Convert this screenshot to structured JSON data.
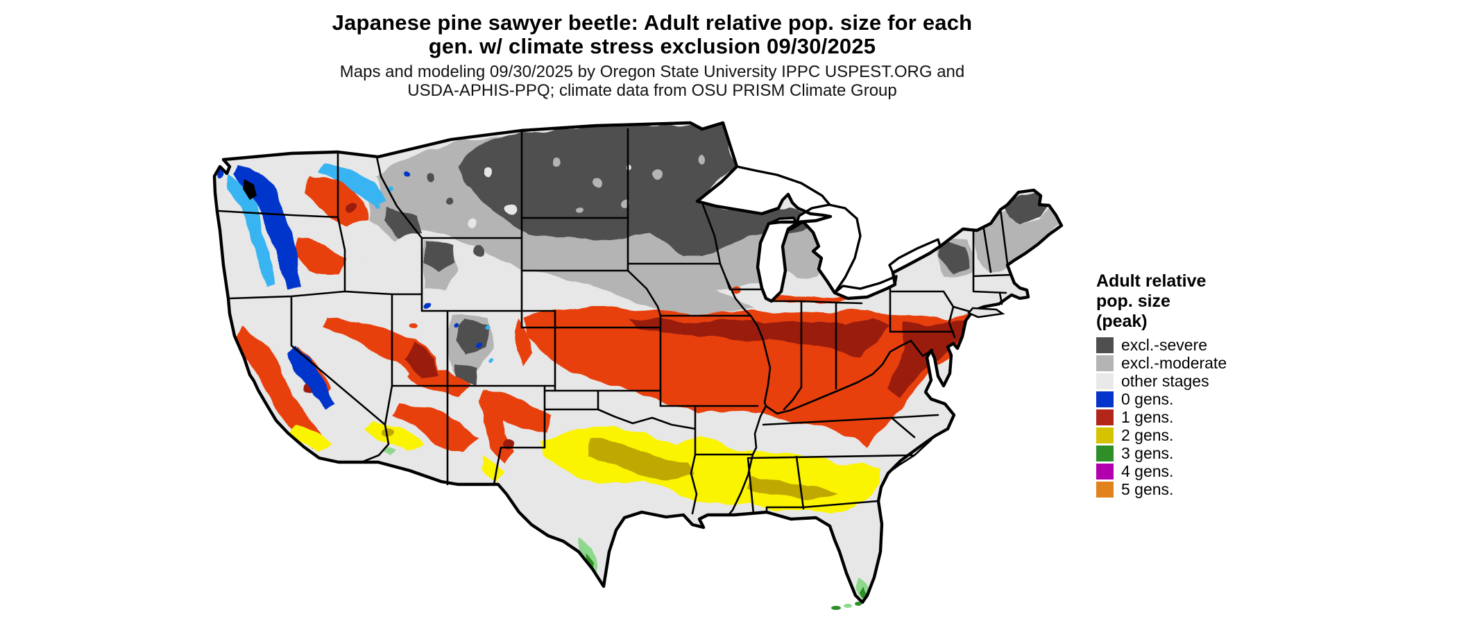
{
  "title": {
    "line1": "Japanese pine sawyer beetle: Adult relative pop. size for each",
    "line2": "gen. w/ climate stress exclusion 09/30/2025"
  },
  "subtitle": {
    "line1": "Maps and modeling 09/30/2025 by Oregon State University IPPC USPEST.ORG and",
    "line2": "USDA-APHIS-PPQ; climate data from OSU PRISM Climate Group"
  },
  "legend": {
    "title_lines": [
      "Adult relative",
      "pop. size",
      "(peak)"
    ],
    "entries": [
      {
        "label": "excl.-severe",
        "color": "#4f4f4f"
      },
      {
        "label": "excl.-moderate",
        "color": "#b4b4b4"
      },
      {
        "label": "other stages",
        "color": "#e9e9e9"
      },
      {
        "label": "0 gens.",
        "color": "#0534cb"
      },
      {
        "label": "1 gens.",
        "color": "#b2261a"
      },
      {
        "label": "2 gens.",
        "color": "#d6c300"
      },
      {
        "label": "3 gens.",
        "color": "#2e8f28"
      },
      {
        "label": "4 gens.",
        "color": "#b300ae"
      },
      {
        "label": "5 gens.",
        "color": "#e2821c"
      }
    ]
  },
  "map": {
    "palette": {
      "severe": "#4f4f4f",
      "moderate": "#b4b4b4",
      "other": "#e7e7e7",
      "blue": "#0534cb",
      "cyan": "#39b4f2",
      "red": "#b2261a",
      "red_bright": "#e8400e",
      "red_dark": "#9a1a10",
      "yellow": "#d6c300",
      "yellow_bright": "#fbf400",
      "yellow_dark": "#bfa900",
      "green": "#2e8f28",
      "green_light": "#8ed88e",
      "magenta": "#b300ae",
      "orange": "#e2821c",
      "outline": "#000000",
      "water": "#ffffff"
    }
  }
}
